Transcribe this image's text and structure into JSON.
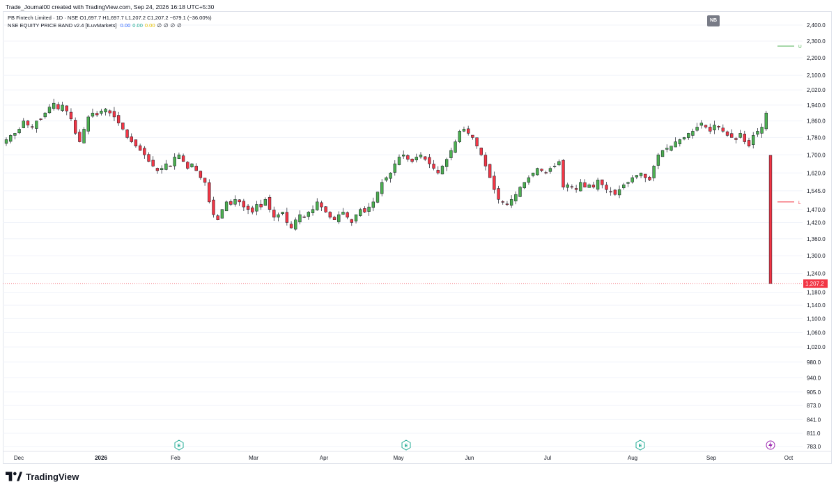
{
  "header": {
    "caption": "Trade_Journal00 created with TradingView.com, Sep 24, 2026 16:18 UTC+5:30"
  },
  "legend": {
    "symbol_line": "PB Fintech Limited · 1D · NSE  O1,697.7  H1,697.7  L1,207.2  C1,207.2  −679.1 (−36.00%)",
    "indicator_name": "NSE EQUITY PRICE BAND v2.4 [ILuvMarkets]",
    "indicator_values": [
      {
        "text": "0.00",
        "color": "#2962ff"
      },
      {
        "text": "0.00",
        "color": "#22ab94"
      },
      {
        "text": "0.00",
        "color": "#e6c200"
      },
      {
        "text": "∅",
        "color": "#131722"
      },
      {
        "text": "∅",
        "color": "#131722"
      },
      {
        "text": "∅",
        "color": "#131722"
      },
      {
        "text": "∅",
        "color": "#131722"
      }
    ]
  },
  "badge": "NB",
  "brand": {
    "name": "TradingView"
  },
  "colors": {
    "up": "#26a69a",
    "up_fill": "#4caf50",
    "down": "#f23645",
    "grid": "#f0f3fa",
    "axis_text": "#131722",
    "last_price_bg": "#f23645",
    "upper_band": "#4caf50",
    "lower_band": "#f23645",
    "event_icon": "#22ab94",
    "flash_icon": "#9c27b0"
  },
  "chart_data": {
    "type": "candlestick",
    "symbol": "PB Fintech Limited",
    "exchange": "NSE",
    "timeframe": "1D",
    "price_scale": "log",
    "y_ticks": [
      2400,
      2300,
      2200,
      2100,
      2020,
      1940,
      1860,
      1780,
      1700,
      1620,
      1545,
      1470,
      1420,
      1360,
      1300,
      1240,
      1180,
      1140,
      1100,
      1060,
      1020,
      980,
      940,
      905,
      873,
      841,
      811,
      783
    ],
    "y_tick_labels": [
      "2,400.0",
      "2,300.0",
      "2,200.0",
      "2,100.0",
      "2,020.0",
      "1,940.0",
      "1,860.0",
      "1,780.0",
      "1,700.0",
      "1,620.0",
      "1,545.0",
      "1,470.0",
      "1,420.0",
      "1,360.0",
      "1,300.0",
      "1,240.0",
      "1,180.0",
      "1,140.0",
      "1,100.0",
      "1,060.0",
      "1,020.0",
      "980.0",
      "940.0",
      "905.0",
      "873.0",
      "841.0",
      "811.0",
      "783.0"
    ],
    "x_labels": [
      "Dec",
      "2026",
      "Feb",
      "Mar",
      "Apr",
      "May",
      "Jun",
      "Jul",
      "Aug",
      "Sep",
      "Oct"
    ],
    "x_label_bold": "2026",
    "last_price": 1207.2,
    "last_price_label": "1,207.2",
    "upper_band_label": "U",
    "lower_band_label": "L",
    "upper_band": 2270,
    "lower_band": 1500,
    "event_markers": [
      "E",
      "E",
      "E"
    ],
    "closes": [
      1770,
      1790,
      1800,
      1820,
      1860,
      1840,
      1830,
      1860,
      1870,
      1900,
      1930,
      1950,
      1920,
      1940,
      1910,
      1870,
      1800,
      1760,
      1820,
      1880,
      1900,
      1890,
      1910,
      1920,
      1900,
      1880,
      1850,
      1820,
      1780,
      1760,
      1740,
      1720,
      1700,
      1670,
      1650,
      1630,
      1640,
      1660,
      1650,
      1690,
      1700,
      1670,
      1640,
      1660,
      1630,
      1600,
      1580,
      1500,
      1450,
      1430,
      1470,
      1500,
      1490,
      1510,
      1500,
      1480,
      1470,
      1460,
      1490,
      1480,
      1510,
      1470,
      1440,
      1450,
      1460,
      1420,
      1400,
      1430,
      1450,
      1440,
      1460,
      1470,
      1500,
      1480,
      1460,
      1440,
      1430,
      1450,
      1460,
      1440,
      1420,
      1450,
      1470,
      1460,
      1480,
      1500,
      1540,
      1580,
      1600,
      1620,
      1660,
      1690,
      1700,
      1680,
      1670,
      1690,
      1700,
      1680,
      1660,
      1640,
      1620,
      1650,
      1680,
      1720,
      1760,
      1810,
      1820,
      1800,
      1780,
      1740,
      1700,
      1650,
      1600,
      1550,
      1510,
      1500,
      1490,
      1510,
      1530,
      1560,
      1580,
      1600,
      1620,
      1640,
      1630,
      1620,
      1640,
      1650,
      1670,
      1560,
      1570,
      1560,
      1550,
      1580,
      1560,
      1570,
      1560,
      1590,
      1570,
      1550,
      1540,
      1530,
      1550,
      1570,
      1580,
      1600,
      1610,
      1620,
      1600,
      1590,
      1650,
      1700,
      1720,
      1730,
      1740,
      1760,
      1770,
      1780,
      1800,
      1810,
      1830,
      1850,
      1830,
      1810,
      1840,
      1830,
      1810,
      1790,
      1780,
      1770,
      1800,
      1760,
      1740,
      1790,
      1810,
      1830,
      1900,
      1207.2
    ]
  }
}
